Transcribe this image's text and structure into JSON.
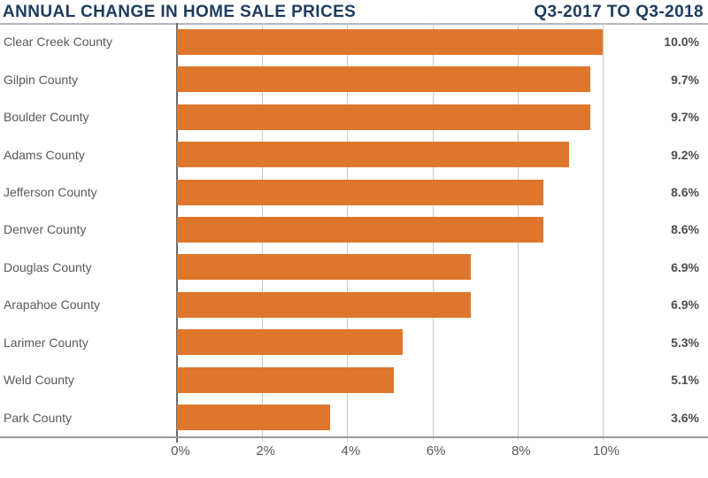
{
  "header": {
    "title": "ANNUAL CHANGE IN HOME SALE PRICES",
    "period": "Q3-2017 TO Q3-2018"
  },
  "chart_data": {
    "type": "bar",
    "orientation": "horizontal",
    "title": "ANNUAL CHANGE IN HOME SALE PRICES",
    "subtitle": "Q3-2017 TO Q3-2018",
    "categories": [
      "Clear Creek County",
      "Gilpin County",
      "Boulder County",
      "Adams County",
      "Jefferson County",
      "Denver County",
      "Douglas County",
      "Arapahoe County",
      "Larimer County",
      "Weld County",
      "Park County"
    ],
    "values": [
      10.0,
      9.7,
      9.7,
      9.2,
      8.6,
      8.6,
      6.9,
      6.9,
      5.3,
      5.1,
      3.6
    ],
    "value_labels": [
      "10.0%",
      "9.7%",
      "9.7%",
      "9.2%",
      "8.6%",
      "8.6%",
      "6.9%",
      "6.9%",
      "5.3%",
      "5.1%",
      "3.6%"
    ],
    "xlabel": "",
    "ylabel": "",
    "x_axis": {
      "tick_values": [
        0,
        2,
        4,
        6,
        8,
        10
      ],
      "tick_labels": [
        "0%",
        "2%",
        "4%",
        "6%",
        "8%",
        "10%"
      ],
      "range": [
        0,
        12.4
      ]
    },
    "grid": "vertical-gridlines-at-2pct-steps",
    "legend": "none",
    "colors": {
      "bar": "#de772c",
      "title": "#1e3b5f",
      "label": "#58595a",
      "value": "#4c4d4f",
      "gridline": "#c9cacc",
      "zero_line": "#6a6c6e",
      "axis_line": "#98999b"
    }
  }
}
